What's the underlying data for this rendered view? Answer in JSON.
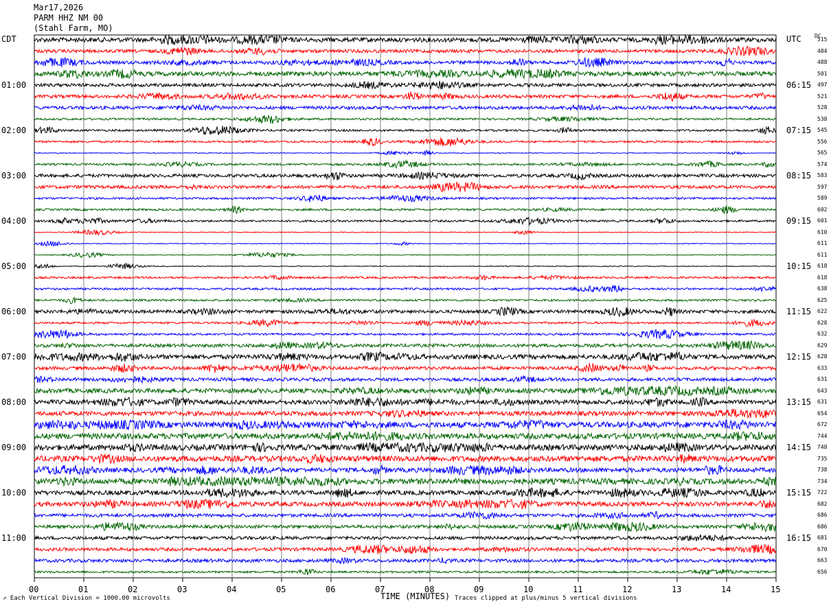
{
  "header": {
    "date": "Mar17,2026",
    "station": "PARM HHZ NM 00",
    "location": "(Stahl Farm, MO)"
  },
  "left_timezone": "CDT",
  "right_timezone": "UTC",
  "dc_label": "DC",
  "colors": {
    "black": "#000000",
    "red": "#ff0000",
    "blue": "#0000ff",
    "green": "#006400",
    "grid": "#808080"
  },
  "chart_data": {
    "type": "line",
    "xlabel": "TIME (MINUTES)",
    "x_ticks": [
      "00",
      "01",
      "02",
      "03",
      "04",
      "05",
      "06",
      "07",
      "08",
      "09",
      "10",
      "11",
      "12",
      "13",
      "14",
      "15"
    ],
    "xlim": [
      0,
      15
    ],
    "left_hour_labels": [
      "01:00",
      "02:00",
      "03:00",
      "04:00",
      "05:00",
      "06:00",
      "07:00",
      "08:00",
      "09:00",
      "10:00",
      "11:00"
    ],
    "right_hour_labels": [
      "06:15",
      "07:15",
      "08:15",
      "09:15",
      "10:15",
      "11:15",
      "12:15",
      "13:15",
      "14:15",
      "15:15",
      "16:15"
    ],
    "trace_colors": [
      "black",
      "red",
      "blue",
      "green"
    ],
    "trace_dc_offsets": [
      515,
      484,
      488,
      501,
      497,
      521,
      528,
      538,
      545,
      556,
      565,
      574,
      583,
      597,
      589,
      602,
      601,
      610,
      611,
      611,
      618,
      618,
      638,
      625,
      622,
      628,
      632,
      629,
      628,
      633,
      631,
      643,
      631,
      654,
      672,
      744,
      748,
      735,
      738,
      734,
      722,
      682,
      686,
      686,
      681,
      670,
      663,
      656
    ],
    "trace_activity": [
      3,
      2,
      2,
      3,
      2,
      2,
      2,
      1,
      1,
      1,
      0,
      1,
      2,
      2,
      1,
      1,
      1,
      0,
      0,
      0,
      0,
      1,
      1,
      1,
      2,
      1,
      1,
      2,
      3,
      2,
      2,
      3,
      3,
      3,
      4,
      4,
      4,
      4,
      3,
      4,
      3,
      3,
      2,
      2,
      2,
      2,
      2,
      1
    ]
  },
  "footer": {
    "vertical_division": "Each Vertical Division = 1000.00 microvolts",
    "clip_note": "Traces clipped at plus/minus 5 vertical divisions"
  }
}
